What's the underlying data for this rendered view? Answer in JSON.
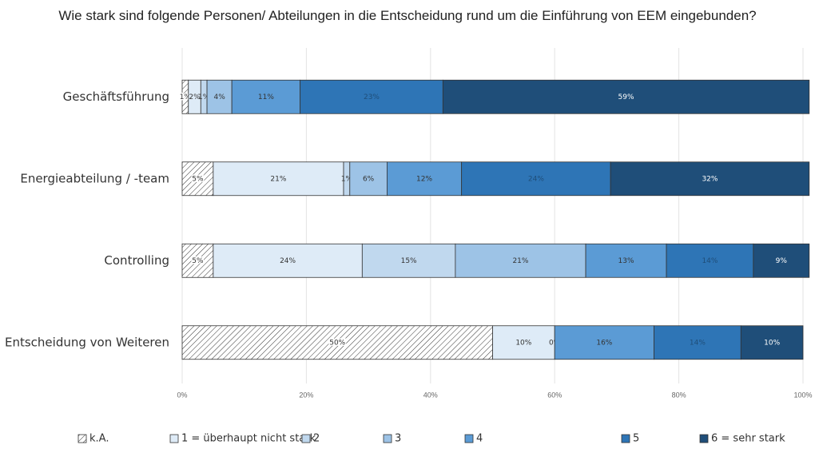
{
  "chart_data": {
    "type": "stacked-bar-horizontal",
    "title": "Wie stark sind folgende Personen/ Abteilungen in die Entscheidung rund um die Einführung von EEM eingebunden?",
    "categories": [
      "Geschäftsführung",
      "Energieabteilung / -team",
      "Controlling",
      "Entscheidung von Weiteren"
    ],
    "series": [
      {
        "name": "k.A.",
        "color": "hatch",
        "values": [
          1,
          5,
          5,
          50
        ],
        "value_labels": [
          "1%",
          "5%",
          "5%",
          "50%"
        ]
      },
      {
        "name": "1 = überhaupt nicht stark",
        "color": "#deebf7",
        "values": [
          2,
          21,
          24,
          10
        ],
        "value_labels": [
          "2%",
          "21%",
          "24%",
          "10%"
        ]
      },
      {
        "name": "2",
        "color": "#c0d8ee",
        "values": [
          1,
          1,
          15,
          null
        ],
        "value_labels": [
          "1%",
          "1%",
          "15%",
          null
        ]
      },
      {
        "name": "3",
        "color": "#9dc3e6",
        "values": [
          4,
          6,
          21,
          0
        ],
        "value_labels": [
          "4%",
          "6%",
          "21%",
          "0%"
        ]
      },
      {
        "name": "4",
        "color": "#5b9bd5",
        "values": [
          11,
          12,
          13,
          16
        ],
        "value_labels": [
          "11%",
          "12%",
          "13%",
          "16%"
        ]
      },
      {
        "name": "5",
        "color": "#2e75b6",
        "values": [
          23,
          24,
          14,
          14
        ],
        "value_labels": [
          "23%",
          "24%",
          "14%",
          "14%"
        ]
      },
      {
        "name": "6 = sehr stark",
        "color": "#1f4e79",
        "values": [
          59,
          32,
          9,
          10
        ],
        "value_labels": [
          "59%",
          "32%",
          "9%",
          "10%"
        ]
      }
    ],
    "xlim": [
      0,
      100
    ],
    "xticks": [
      {
        "value": 0,
        "label": "0%"
      },
      {
        "value": 20,
        "label": "20%"
      },
      {
        "value": 40,
        "label": "40%"
      },
      {
        "value": 60,
        "label": "60%"
      },
      {
        "value": 80,
        "label": "80%"
      },
      {
        "value": 100,
        "label": "100%"
      }
    ],
    "grid": true,
    "legend": "bottom"
  }
}
